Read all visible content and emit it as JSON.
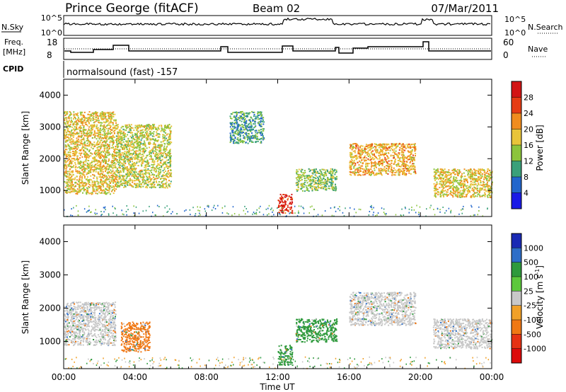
{
  "header": {
    "station": "Prince George (fitACF)",
    "beam": "Beam 02",
    "date": "07/Mar/2011"
  },
  "noise_panel": {
    "left_label": "N.Sky",
    "right_label": "N.Search",
    "ticks": [
      "10^5",
      "10^0"
    ]
  },
  "freq_panel": {
    "left_label_line1": "Freq.",
    "left_label_line2": "[MHz]",
    "left_ticks": [
      "18",
      "8"
    ],
    "right_label": "Nave",
    "right_ticks": [
      "60",
      "0"
    ]
  },
  "cpid_panel": {
    "label": "CPID",
    "text": "normalsound (fast) -157"
  },
  "chart_data": [
    {
      "type": "heatmap",
      "quantity": "Power",
      "ylabel": "Slant Range [km]",
      "yticks": [
        1000,
        2000,
        3000,
        4000
      ],
      "ylim": [
        180,
        4500
      ],
      "colorbar_label": "Power [dB]",
      "colorbar_ticks": [
        4,
        8,
        12,
        16,
        20,
        24,
        28
      ],
      "colorbar_range": [
        0,
        30
      ],
      "colors": [
        "#1a1ae6",
        "#2266cc",
        "#3aa07a",
        "#8cc43c",
        "#e8c43a",
        "#f08c1e",
        "#e63c14",
        "#d21414"
      ],
      "echo_regions": [
        {
          "t": [
            0.0,
            2.9
          ],
          "r": [
            900,
            3500
          ],
          "level": 18
        },
        {
          "t": [
            2.9,
            6.0
          ],
          "r": [
            1100,
            3100
          ],
          "level": 16
        },
        {
          "t": [
            9.3,
            11.2
          ],
          "r": [
            2500,
            3500
          ],
          "level": 10
        },
        {
          "t": [
            12.0,
            12.8
          ],
          "r": [
            300,
            900
          ],
          "level": 28
        },
        {
          "t": [
            13.0,
            15.3
          ],
          "r": [
            1000,
            1700
          ],
          "level": 14
        },
        {
          "t": [
            16.0,
            19.7
          ],
          "r": [
            1500,
            2500
          ],
          "level": 20
        },
        {
          "t": [
            20.7,
            24.0
          ],
          "r": [
            800,
            1700
          ],
          "level": 18
        }
      ]
    },
    {
      "type": "heatmap",
      "quantity": "Velocity",
      "xlabel": "Time UT",
      "ylabel": "Slant Range [km]",
      "xticks": [
        "00:00",
        "04:00",
        "08:00",
        "12:00",
        "16:00",
        "20:00",
        "00:00"
      ],
      "xlim": [
        0,
        24
      ],
      "yticks": [
        1000,
        2000,
        3000,
        4000
      ],
      "ylim": [
        180,
        4500
      ],
      "colorbar_label": "Velocity [m s",
      "colorbar_label_sup": "-1",
      "colorbar_label_close": "]",
      "colorbar_ticks": [
        "1000",
        "500",
        "100",
        "25",
        "-25",
        "-100",
        "-500",
        "-1000"
      ],
      "colors": [
        "#1a2ab4",
        "#2e6ec8",
        "#2e9a3c",
        "#5cc83c",
        "#c8c8c8",
        "#f0a028",
        "#f07814",
        "#e63214",
        "#dc0a0a"
      ],
      "echo_regions": [
        {
          "t": [
            0.0,
            2.9
          ],
          "r": [
            900,
            2200
          ],
          "velocity": "ground scatter"
        },
        {
          "t": [
            3.2,
            4.8
          ],
          "r": [
            700,
            1600
          ],
          "velocity": -500
        },
        {
          "t": [
            12.0,
            12.8
          ],
          "r": [
            300,
            900
          ],
          "velocity": 100
        },
        {
          "t": [
            13.0,
            15.3
          ],
          "r": [
            1000,
            1700
          ],
          "velocity": 100
        },
        {
          "t": [
            16.0,
            19.7
          ],
          "r": [
            1500,
            2500
          ],
          "velocity": "ground scatter"
        },
        {
          "t": [
            20.7,
            24.0
          ],
          "r": [
            800,
            1700
          ],
          "velocity": "ground scatter"
        }
      ]
    }
  ]
}
